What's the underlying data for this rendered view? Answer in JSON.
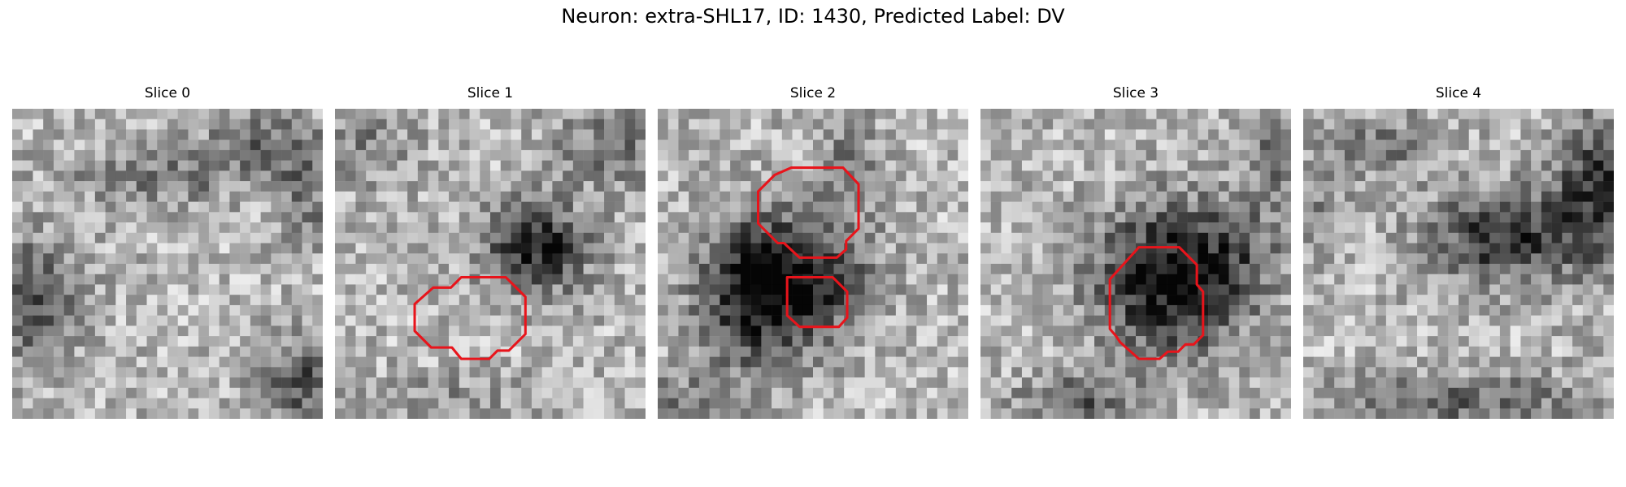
{
  "figure": {
    "title": "Neuron: extra-SHL17, ID: 1430, Predicted Label: DV"
  },
  "panels": [
    {
      "title": "Slice 0"
    },
    {
      "title": "Slice 1"
    },
    {
      "title": "Slice 2"
    },
    {
      "title": "Slice 3"
    },
    {
      "title": "Slice 4"
    }
  ],
  "colors": {
    "contour": "#e8141b",
    "background": "#ffffff",
    "colormap": "grayscale"
  }
}
